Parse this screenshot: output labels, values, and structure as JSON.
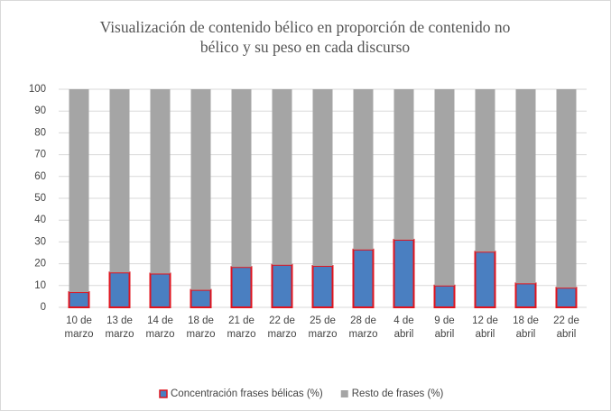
{
  "chart_data": {
    "type": "stacked_bar",
    "title": "Visualización de contenido bélico en proporción de contenido no bélico y su peso en cada discurso",
    "categories": [
      "10 de marzo",
      "13 de marzo",
      "14 de marzo",
      "18 de marzo",
      "21 de marzo",
      "22 de marzo",
      "25 de marzo",
      "28 de marzo",
      "4 de abril",
      "9 de abril",
      "12 de abril",
      "18 de abril",
      "22 de abril"
    ],
    "series": [
      {
        "name": "Concentración frases bélicas (%)",
        "color": "#4a7fc1",
        "edge_color": "#e0141e",
        "values": [
          7,
          16,
          15.5,
          8,
          18.5,
          19.5,
          19,
          26.5,
          31,
          10,
          25.5,
          11,
          9
        ]
      },
      {
        "name": "Resto de frases (%)",
        "color": "#a5a5a5",
        "values": [
          93,
          84,
          84.5,
          92,
          81.5,
          80.5,
          81,
          73.5,
          69,
          90,
          74.5,
          89,
          91
        ]
      }
    ],
    "ylim": [
      0,
      100
    ],
    "yticks": [
      0,
      10,
      20,
      30,
      40,
      50,
      60,
      70,
      80,
      90,
      100
    ],
    "grid": true,
    "legend": "bottom"
  }
}
